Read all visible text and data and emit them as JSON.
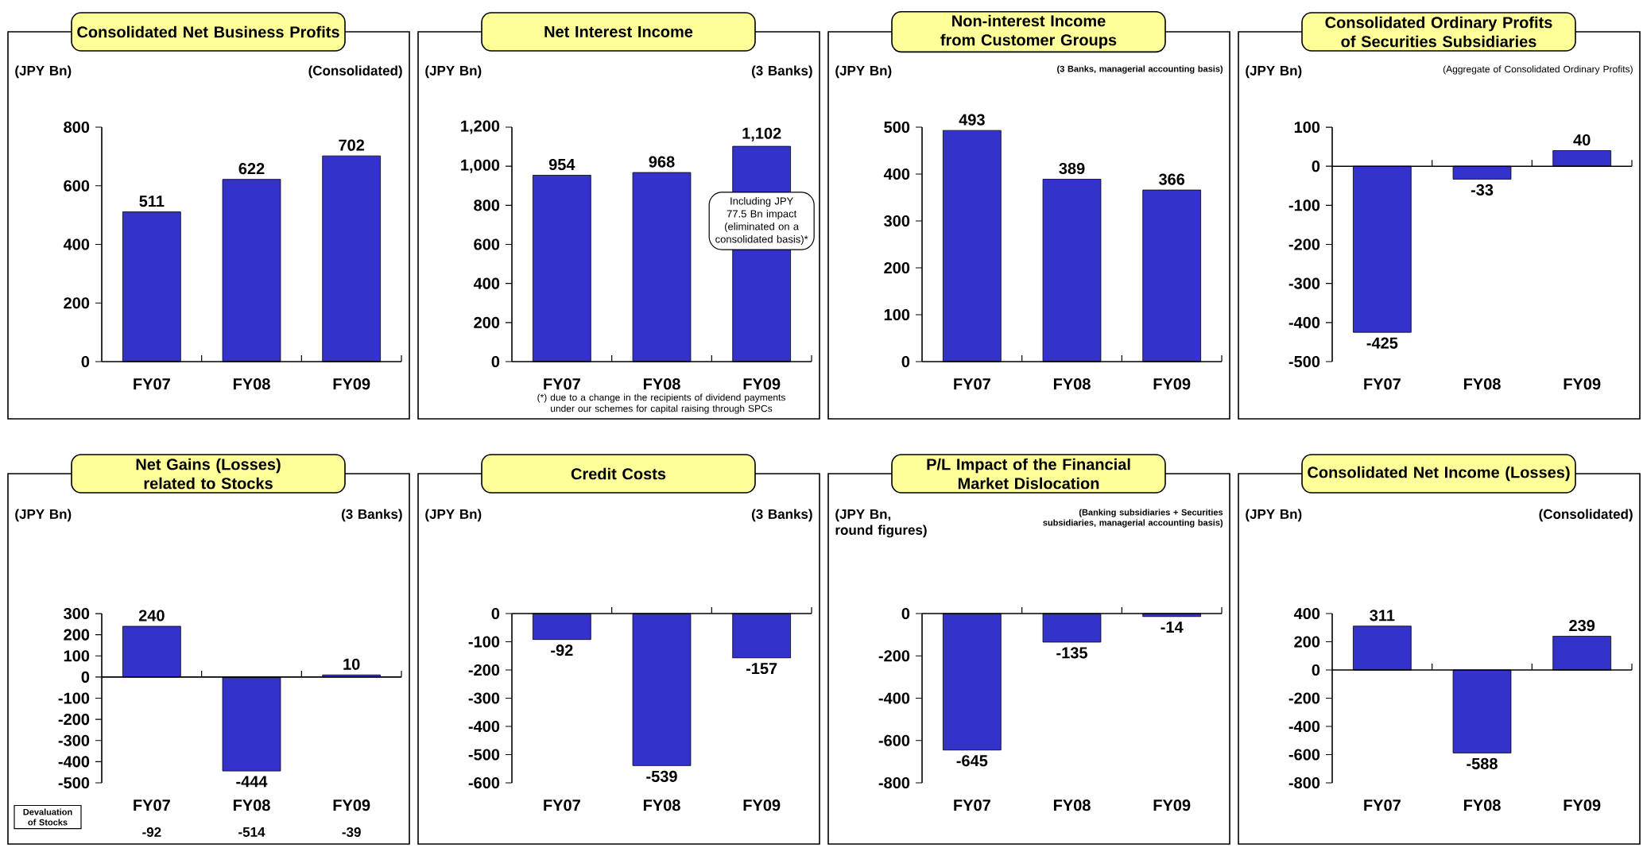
{
  "chart_data": [
    {
      "type": "bar",
      "title": "Consolidated Net Business Profits",
      "ylabel": "(JPY Bn)",
      "subtitle": "(Consolidated)",
      "categories": [
        "FY07",
        "FY08",
        "FY09"
      ],
      "values": [
        511,
        622,
        702
      ],
      "color": "#3333cc",
      "ylim": [
        0,
        800
      ],
      "yticks": [
        0,
        200,
        400,
        600,
        800
      ],
      "data_labels": true
    },
    {
      "type": "bar",
      "title": "Net Interest Income",
      "ylabel": "(JPY Bn)",
      "subtitle": "(3 Banks)",
      "categories": [
        "FY07",
        "FY08",
        "FY09"
      ],
      "values": [
        954,
        968,
        1102
      ],
      "value_labels": [
        "954",
        "968",
        "1,102"
      ],
      "color": "#3333cc",
      "ylim": [
        0,
        1200
      ],
      "yticks": [
        0,
        200,
        400,
        600,
        800,
        {
          "value": 1000,
          "label": "1,000"
        },
        {
          "value": 1200,
          "label": "1,200"
        }
      ],
      "annotations": [
        "Including JPY 77.5 Bn impact (eliminated on a consolidated basis)*",
        "(*) due to a change in the recipients of dividend payments under our schemes for capital raising through SPCs"
      ]
    },
    {
      "type": "bar",
      "title": "Non-interest Income from Customer Groups",
      "ylabel": "(JPY Bn)",
      "subtitle": "(3 Banks, managerial accounting basis)",
      "categories": [
        "FY07",
        "FY08",
        "FY09"
      ],
      "values": [
        493,
        389,
        366
      ],
      "color": "#3333cc",
      "ylim": [
        0,
        500
      ],
      "yticks": [
        0,
        100,
        200,
        300,
        400,
        500
      ],
      "data_labels": true
    },
    {
      "type": "bar",
      "title": "Consolidated Ordinary Profits of Securities Subsidiaries",
      "ylabel": "(JPY Bn)",
      "subtitle": "(Aggregate of Consolidated Ordinary Profits)",
      "categories": [
        "FY07",
        "FY08",
        "FY09"
      ],
      "values": [
        -425,
        -33,
        40
      ],
      "color": "#3333cc",
      "ylim": [
        -500,
        100
      ],
      "yticks": [
        -500,
        -400,
        -300,
        -200,
        -100,
        0,
        100
      ],
      "data_labels": true
    },
    {
      "type": "bar",
      "title": "Net Gains (Losses) related to Stocks",
      "ylabel": "(JPY Bn)",
      "subtitle": "(3 Banks)",
      "categories": [
        "FY07",
        "FY08",
        "FY09"
      ],
      "values": [
        240,
        -444,
        10
      ],
      "color": "#3333cc",
      "ylim": [
        -500,
        300
      ],
      "yticks": [
        -500,
        -400,
        -300,
        -200,
        -100,
        0,
        100,
        200,
        300
      ],
      "data_labels": true,
      "annotations": [
        "Devaluation of Stocks",
        "-92",
        "-514",
        "-39"
      ]
    },
    {
      "type": "bar",
      "title": "Credit Costs",
      "ylabel": "(JPY Bn)",
      "subtitle": "(3 Banks)",
      "categories": [
        "FY07",
        "FY08",
        "FY09"
      ],
      "values": [
        -92,
        -539,
        -157
      ],
      "color": "#3333cc",
      "ylim": [
        -600,
        0
      ],
      "yticks": [
        -600,
        -500,
        -400,
        -300,
        -200,
        -100,
        0
      ],
      "data_labels": true
    },
    {
      "type": "bar",
      "title": "P/L Impact of the Financial Market Dislocation",
      "ylabel": "(JPY Bn, round figures)",
      "subtitle": "(Banking subsidiaries + Securities subsidiaries, managerial accounting basis)",
      "categories": [
        "FY07",
        "FY08",
        "FY09"
      ],
      "values": [
        -645,
        -135,
        -14
      ],
      "color": "#3333cc",
      "ylim": [
        -800,
        0
      ],
      "yticks": [
        -800,
        -600,
        -400,
        -200,
        0
      ],
      "data_labels": true
    },
    {
      "type": "bar",
      "title": "Consolidated Net Income (Losses)",
      "ylabel": "(JPY Bn)",
      "subtitle": "(Consolidated)",
      "categories": [
        "FY07",
        "FY08",
        "FY09"
      ],
      "values": [
        311,
        -588,
        239
      ],
      "color": "#3333cc",
      "ylim": [
        -800,
        400
      ],
      "yticks": [
        -800,
        -600,
        -400,
        -200,
        0,
        200,
        400
      ],
      "data_labels": true
    }
  ]
}
